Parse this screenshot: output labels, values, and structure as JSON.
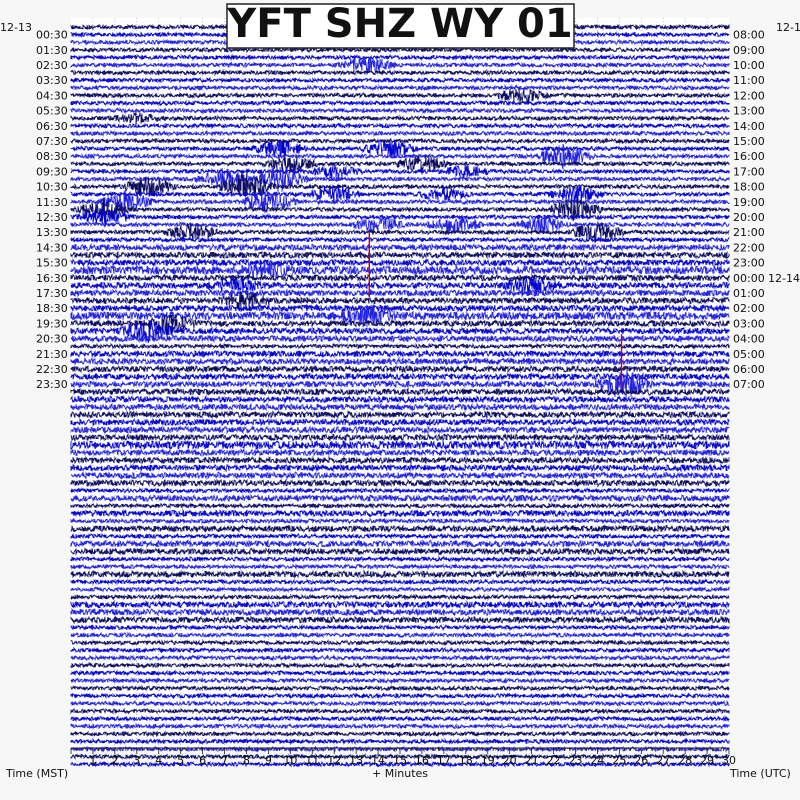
{
  "title": "YFT SHZ WY 01",
  "date_left": "12-13",
  "date_right": "12-1",
  "date_right_change": "12-14",
  "left_axis_label": "Time (MST)",
  "center_axis_label": "+ Minutes",
  "right_axis_label": "Time (UTC)",
  "colors": {
    "trace_dark": "#0a0a5e",
    "trace_blue": "#0000d0",
    "trace_mid": "#2020e0",
    "event_red": "#d00000",
    "background": "#ffffff"
  },
  "chart_data": {
    "type": "helicorder",
    "title": "YFT SHZ WY 01",
    "xlabel": "+ Minutes",
    "xlim": [
      0,
      30
    ],
    "x_ticks": [
      "1",
      "2",
      "3",
      "4",
      "5",
      "6",
      "7",
      "8",
      "9",
      "10",
      "11",
      "12",
      "13",
      "14",
      "15",
      "16",
      "17",
      "18",
      "19",
      "20",
      "21",
      "22",
      "23",
      "24",
      "25",
      "26",
      "27",
      "28",
      "29",
      "30"
    ],
    "rows_per_hour": 2,
    "left_times": [
      "00:30",
      "01:30",
      "02:30",
      "03:30",
      "04:30",
      "05:30",
      "06:30",
      "07:30",
      "08:30",
      "09:30",
      "10:30",
      "11:30",
      "12:30",
      "13:30",
      "14:30",
      "15:30",
      "16:30",
      "17:30",
      "18:30",
      "19:30",
      "20:30",
      "21:30",
      "22:30",
      "23:30"
    ],
    "right_times": [
      "08:00",
      "09:00",
      "10:00",
      "11:00",
      "12:00",
      "13:00",
      "14:00",
      "15:00",
      "16:00",
      "17:00",
      "18:00",
      "19:00",
      "20:00",
      "21:00",
      "22:00",
      "23:00",
      "00:00",
      "01:00",
      "02:00",
      "03:00",
      "04:00",
      "05:00",
      "06:00",
      "07:00"
    ],
    "row_amplitude": [
      2,
      2,
      2,
      2,
      2,
      2,
      2,
      2,
      2,
      2,
      2,
      2,
      2,
      2,
      2,
      2,
      2,
      2,
      2,
      2,
      2,
      2,
      2,
      2,
      2,
      2,
      2,
      2,
      2,
      3,
      3,
      3,
      4,
      3,
      3,
      3,
      3,
      3,
      4,
      3,
      3,
      3,
      2,
      3,
      3,
      3,
      3,
      3,
      3,
      3,
      3,
      3,
      3,
      3,
      3,
      4,
      3,
      3,
      3,
      3,
      3,
      2,
      3,
      2,
      3,
      2,
      3,
      2,
      3,
      3,
      2,
      2,
      3,
      2,
      2,
      2,
      3,
      3,
      3,
      2,
      2,
      2,
      2,
      2,
      2,
      2,
      2,
      2,
      2,
      2,
      2,
      2,
      2,
      2,
      2,
      2,
      2,
      2
    ],
    "events": [
      {
        "row": 2,
        "minute": 17,
        "amp": 3
      },
      {
        "row": 5,
        "minute": 13.5,
        "amp": 8
      },
      {
        "row": 9,
        "minute": 20.5,
        "amp": 7
      },
      {
        "row": 12,
        "minute": 3,
        "amp": 4
      },
      {
        "row": 16,
        "minute": 9.5,
        "amp": 8
      },
      {
        "row": 16,
        "minute": 14.5,
        "amp": 9
      },
      {
        "row": 17,
        "minute": 22.5,
        "amp": 12
      },
      {
        "row": 18,
        "minute": 10,
        "amp": 8
      },
      {
        "row": 18,
        "minute": 16,
        "amp": 8
      },
      {
        "row": 19,
        "minute": 12,
        "amp": 6
      },
      {
        "row": 19,
        "minute": 18,
        "amp": 5
      },
      {
        "row": 20,
        "minute": 7,
        "amp": 10
      },
      {
        "row": 20,
        "minute": 9.5,
        "amp": 12
      },
      {
        "row": 21,
        "minute": 3.5,
        "amp": 10
      },
      {
        "row": 21,
        "minute": 8,
        "amp": 14
      },
      {
        "row": 22,
        "minute": 12,
        "amp": 8
      },
      {
        "row": 22,
        "minute": 17,
        "amp": 6
      },
      {
        "row": 22,
        "minute": 23,
        "amp": 9
      },
      {
        "row": 23,
        "minute": 2.5,
        "amp": 10
      },
      {
        "row": 23,
        "minute": 9,
        "amp": 12
      },
      {
        "row": 24,
        "minute": 1.5,
        "amp": 10
      },
      {
        "row": 24,
        "minute": 23,
        "amp": 12
      },
      {
        "row": 25,
        "minute": 1.5,
        "amp": 9
      },
      {
        "row": 26,
        "minute": 14,
        "amp": 9
      },
      {
        "row": 26,
        "minute": 17.5,
        "amp": 8
      },
      {
        "row": 26,
        "minute": 21.5,
        "amp": 8
      },
      {
        "row": 27,
        "minute": 5.5,
        "amp": 8
      },
      {
        "row": 27,
        "minute": 24,
        "amp": 10
      },
      {
        "row": 32,
        "minute": 9,
        "amp": 5
      },
      {
        "row": 34,
        "minute": 7.5,
        "amp": 7
      },
      {
        "row": 34,
        "minute": 21,
        "amp": 9
      },
      {
        "row": 36,
        "minute": 8,
        "amp": 8
      },
      {
        "row": 38,
        "minute": 13.5,
        "amp": 9
      },
      {
        "row": 39,
        "minute": 4.5,
        "amp": 8
      },
      {
        "row": 40,
        "minute": 3.5,
        "amp": 10
      },
      {
        "row": 47,
        "minute": 25.2,
        "amp": 14
      }
    ],
    "red_spikes": [
      {
        "row": 35,
        "minute": 13.6,
        "height": 60
      },
      {
        "row": 47,
        "minute": 25.1,
        "height": 50
      }
    ]
  }
}
